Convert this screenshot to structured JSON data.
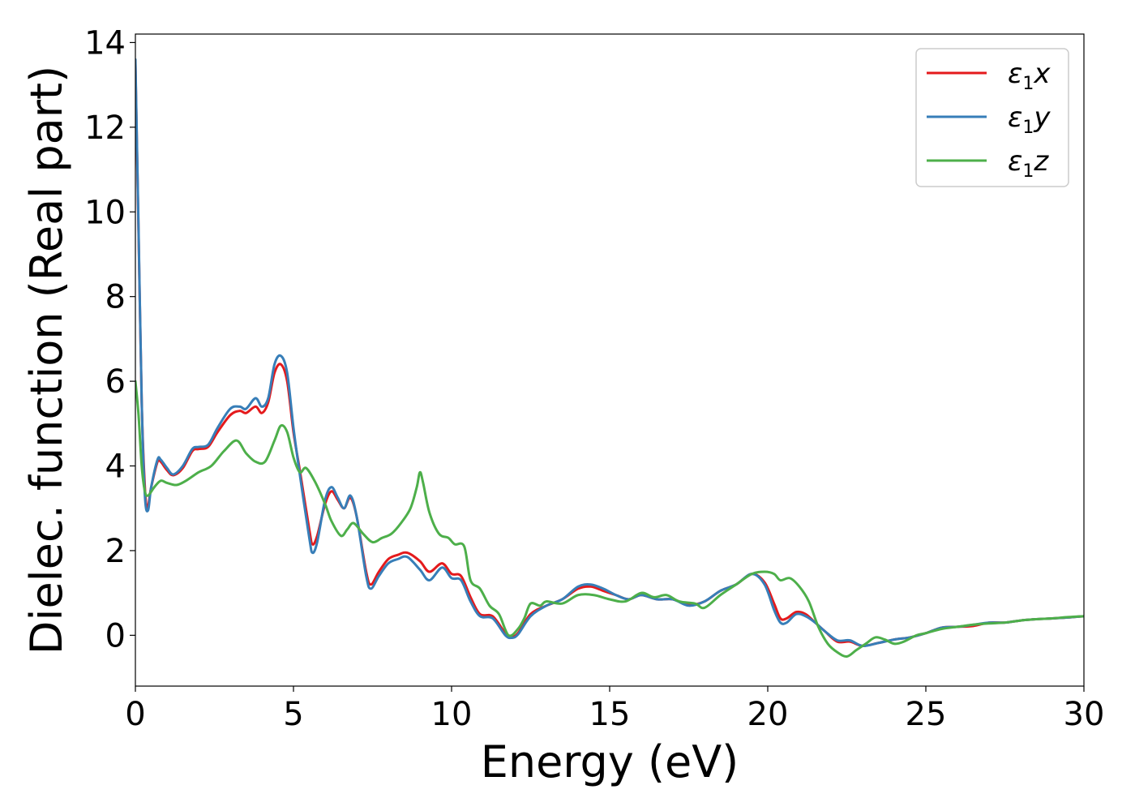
{
  "chart_data": {
    "type": "line",
    "xlabel": "Energy (eV)",
    "ylabel": "Dielec. function (Real part)",
    "xlim": [
      0,
      30
    ],
    "ylim": [
      -1.2,
      14.2
    ],
    "xticks": [
      0,
      5,
      10,
      15,
      20,
      25,
      30
    ],
    "yticks": [
      0,
      2,
      4,
      6,
      8,
      10,
      12,
      14
    ],
    "grid": false,
    "legend_position": "top-right",
    "series": [
      {
        "name": "x",
        "legend_parts": {
          "base": "ε",
          "sub": "1",
          "suffix": "x"
        },
        "color": "#e41a1c",
        "points": [
          [
            0,
            13.5
          ],
          [
            0.1,
            9.5
          ],
          [
            0.2,
            5.5
          ],
          [
            0.3,
            3.5
          ],
          [
            0.38,
            3.0
          ],
          [
            0.5,
            3.5
          ],
          [
            0.7,
            4.1
          ],
          [
            0.8,
            4.1
          ],
          [
            1.0,
            3.9
          ],
          [
            1.2,
            3.78
          ],
          [
            1.5,
            3.95
          ],
          [
            1.8,
            4.35
          ],
          [
            2.0,
            4.4
          ],
          [
            2.3,
            4.45
          ],
          [
            2.6,
            4.8
          ],
          [
            3.0,
            5.2
          ],
          [
            3.3,
            5.3
          ],
          [
            3.5,
            5.25
          ],
          [
            3.8,
            5.4
          ],
          [
            4.0,
            5.25
          ],
          [
            4.2,
            5.5
          ],
          [
            4.4,
            6.2
          ],
          [
            4.6,
            6.4
          ],
          [
            4.8,
            6.0
          ],
          [
            5.0,
            4.8
          ],
          [
            5.2,
            3.9
          ],
          [
            5.5,
            2.5
          ],
          [
            5.6,
            2.15
          ],
          [
            5.75,
            2.35
          ],
          [
            6.0,
            3.1
          ],
          [
            6.2,
            3.4
          ],
          [
            6.4,
            3.2
          ],
          [
            6.6,
            3.0
          ],
          [
            6.8,
            3.25
          ],
          [
            7.0,
            2.8
          ],
          [
            7.3,
            1.5
          ],
          [
            7.45,
            1.2
          ],
          [
            7.7,
            1.5
          ],
          [
            8.0,
            1.8
          ],
          [
            8.3,
            1.9
          ],
          [
            8.6,
            1.95
          ],
          [
            9.0,
            1.75
          ],
          [
            9.3,
            1.5
          ],
          [
            9.7,
            1.7
          ],
          [
            10.0,
            1.45
          ],
          [
            10.3,
            1.4
          ],
          [
            10.6,
            0.9
          ],
          [
            10.9,
            0.5
          ],
          [
            11.3,
            0.45
          ],
          [
            11.7,
            0.05
          ],
          [
            11.9,
            -0.03
          ],
          [
            12.1,
            0.05
          ],
          [
            12.5,
            0.5
          ],
          [
            13.0,
            0.7
          ],
          [
            13.5,
            0.85
          ],
          [
            14.0,
            1.1
          ],
          [
            14.4,
            1.15
          ],
          [
            14.8,
            1.05
          ],
          [
            15.2,
            0.95
          ],
          [
            15.6,
            0.85
          ],
          [
            16.0,
            0.95
          ],
          [
            16.5,
            0.85
          ],
          [
            17.0,
            0.85
          ],
          [
            17.5,
            0.72
          ],
          [
            18.0,
            0.8
          ],
          [
            18.5,
            1.05
          ],
          [
            19.0,
            1.2
          ],
          [
            19.5,
            1.45
          ],
          [
            19.9,
            1.25
          ],
          [
            20.2,
            0.75
          ],
          [
            20.4,
            0.4
          ],
          [
            20.6,
            0.4
          ],
          [
            20.9,
            0.55
          ],
          [
            21.2,
            0.5
          ],
          [
            21.5,
            0.3
          ],
          [
            21.8,
            0.1
          ],
          [
            22.2,
            -0.15
          ],
          [
            22.6,
            -0.15
          ],
          [
            23.0,
            -0.25
          ],
          [
            23.5,
            -0.18
          ],
          [
            24.0,
            -0.1
          ],
          [
            24.5,
            -0.05
          ],
          [
            25.0,
            0.05
          ],
          [
            25.5,
            0.18
          ],
          [
            26.0,
            0.2
          ],
          [
            26.5,
            0.22
          ],
          [
            27.0,
            0.3
          ],
          [
            27.5,
            0.3
          ],
          [
            28.0,
            0.35
          ],
          [
            28.5,
            0.38
          ],
          [
            29.0,
            0.4
          ],
          [
            29.5,
            0.42
          ],
          [
            30.0,
            0.45
          ]
        ]
      },
      {
        "name": "y",
        "legend_parts": {
          "base": "ε",
          "sub": "1",
          "suffix": "y"
        },
        "color": "#377eb8",
        "points": [
          [
            0,
            13.6
          ],
          [
            0.1,
            9.6
          ],
          [
            0.2,
            5.5
          ],
          [
            0.3,
            3.3
          ],
          [
            0.4,
            2.95
          ],
          [
            0.5,
            3.5
          ],
          [
            0.7,
            4.15
          ],
          [
            0.8,
            4.15
          ],
          [
            1.0,
            3.95
          ],
          [
            1.2,
            3.8
          ],
          [
            1.5,
            4.0
          ],
          [
            1.8,
            4.4
          ],
          [
            2.0,
            4.45
          ],
          [
            2.3,
            4.5
          ],
          [
            2.6,
            4.9
          ],
          [
            3.0,
            5.35
          ],
          [
            3.3,
            5.4
          ],
          [
            3.5,
            5.35
          ],
          [
            3.8,
            5.6
          ],
          [
            4.0,
            5.4
          ],
          [
            4.2,
            5.6
          ],
          [
            4.4,
            6.4
          ],
          [
            4.6,
            6.6
          ],
          [
            4.8,
            6.2
          ],
          [
            5.0,
            4.9
          ],
          [
            5.2,
            3.8
          ],
          [
            5.5,
            2.3
          ],
          [
            5.6,
            1.95
          ],
          [
            5.75,
            2.2
          ],
          [
            6.0,
            3.2
          ],
          [
            6.2,
            3.5
          ],
          [
            6.4,
            3.25
          ],
          [
            6.6,
            3.0
          ],
          [
            6.8,
            3.3
          ],
          [
            7.0,
            2.8
          ],
          [
            7.3,
            1.4
          ],
          [
            7.45,
            1.1
          ],
          [
            7.7,
            1.4
          ],
          [
            8.0,
            1.7
          ],
          [
            8.3,
            1.8
          ],
          [
            8.6,
            1.85
          ],
          [
            9.0,
            1.55
          ],
          [
            9.3,
            1.3
          ],
          [
            9.7,
            1.6
          ],
          [
            10.0,
            1.35
          ],
          [
            10.3,
            1.3
          ],
          [
            10.6,
            0.8
          ],
          [
            10.9,
            0.45
          ],
          [
            11.3,
            0.4
          ],
          [
            11.7,
            0.0
          ],
          [
            11.9,
            -0.06
          ],
          [
            12.1,
            0.02
          ],
          [
            12.5,
            0.45
          ],
          [
            13.0,
            0.7
          ],
          [
            13.5,
            0.85
          ],
          [
            14.0,
            1.15
          ],
          [
            14.4,
            1.2
          ],
          [
            14.8,
            1.1
          ],
          [
            15.2,
            0.95
          ],
          [
            15.6,
            0.85
          ],
          [
            16.0,
            0.95
          ],
          [
            16.5,
            0.85
          ],
          [
            17.0,
            0.85
          ],
          [
            17.5,
            0.7
          ],
          [
            18.0,
            0.8
          ],
          [
            18.5,
            1.05
          ],
          [
            19.0,
            1.2
          ],
          [
            19.5,
            1.45
          ],
          [
            19.9,
            1.2
          ],
          [
            20.2,
            0.6
          ],
          [
            20.4,
            0.3
          ],
          [
            20.6,
            0.3
          ],
          [
            20.9,
            0.5
          ],
          [
            21.2,
            0.45
          ],
          [
            21.5,
            0.3
          ],
          [
            21.8,
            0.1
          ],
          [
            22.2,
            -0.12
          ],
          [
            22.6,
            -0.12
          ],
          [
            23.0,
            -0.25
          ],
          [
            23.5,
            -0.18
          ],
          [
            24.0,
            -0.1
          ],
          [
            24.5,
            -0.05
          ],
          [
            25.0,
            0.05
          ],
          [
            25.5,
            0.18
          ],
          [
            26.0,
            0.2
          ],
          [
            26.5,
            0.25
          ],
          [
            27.0,
            0.3
          ],
          [
            27.5,
            0.3
          ],
          [
            28.0,
            0.35
          ],
          [
            28.5,
            0.38
          ],
          [
            29.0,
            0.4
          ],
          [
            29.5,
            0.42
          ],
          [
            30.0,
            0.45
          ]
        ]
      },
      {
        "name": "z",
        "legend_parts": {
          "base": "ε",
          "sub": "1",
          "suffix": "z"
        },
        "color": "#4daf4a",
        "points": [
          [
            0,
            6.0
          ],
          [
            0.1,
            5.2
          ],
          [
            0.2,
            4.0
          ],
          [
            0.3,
            3.4
          ],
          [
            0.4,
            3.3
          ],
          [
            0.6,
            3.5
          ],
          [
            0.8,
            3.65
          ],
          [
            1.0,
            3.6
          ],
          [
            1.3,
            3.55
          ],
          [
            1.6,
            3.65
          ],
          [
            2.0,
            3.85
          ],
          [
            2.4,
            4.0
          ],
          [
            2.8,
            4.35
          ],
          [
            3.2,
            4.6
          ],
          [
            3.5,
            4.3
          ],
          [
            3.8,
            4.1
          ],
          [
            4.1,
            4.1
          ],
          [
            4.4,
            4.6
          ],
          [
            4.6,
            4.95
          ],
          [
            4.8,
            4.8
          ],
          [
            5.0,
            4.2
          ],
          [
            5.2,
            3.85
          ],
          [
            5.4,
            3.95
          ],
          [
            5.7,
            3.6
          ],
          [
            6.0,
            3.1
          ],
          [
            6.2,
            2.7
          ],
          [
            6.5,
            2.35
          ],
          [
            6.7,
            2.5
          ],
          [
            6.9,
            2.65
          ],
          [
            7.2,
            2.4
          ],
          [
            7.5,
            2.2
          ],
          [
            7.8,
            2.3
          ],
          [
            8.1,
            2.4
          ],
          [
            8.4,
            2.65
          ],
          [
            8.7,
            3.0
          ],
          [
            8.9,
            3.5
          ],
          [
            9.0,
            3.85
          ],
          [
            9.1,
            3.6
          ],
          [
            9.3,
            2.9
          ],
          [
            9.6,
            2.4
          ],
          [
            9.9,
            2.3
          ],
          [
            10.1,
            2.15
          ],
          [
            10.4,
            2.1
          ],
          [
            10.6,
            1.3
          ],
          [
            10.9,
            1.1
          ],
          [
            11.2,
            0.7
          ],
          [
            11.5,
            0.5
          ],
          [
            11.8,
            0.0
          ],
          [
            12.1,
            0.15
          ],
          [
            12.3,
            0.4
          ],
          [
            12.5,
            0.75
          ],
          [
            12.8,
            0.7
          ],
          [
            13.0,
            0.8
          ],
          [
            13.5,
            0.75
          ],
          [
            14.0,
            0.95
          ],
          [
            14.5,
            0.95
          ],
          [
            15.0,
            0.85
          ],
          [
            15.5,
            0.8
          ],
          [
            16.0,
            1.0
          ],
          [
            16.4,
            0.9
          ],
          [
            16.8,
            0.95
          ],
          [
            17.2,
            0.8
          ],
          [
            17.7,
            0.75
          ],
          [
            18.0,
            0.65
          ],
          [
            18.5,
            0.95
          ],
          [
            19.0,
            1.2
          ],
          [
            19.5,
            1.45
          ],
          [
            19.9,
            1.5
          ],
          [
            20.2,
            1.45
          ],
          [
            20.4,
            1.3
          ],
          [
            20.7,
            1.35
          ],
          [
            21.0,
            1.15
          ],
          [
            21.3,
            0.8
          ],
          [
            21.6,
            0.2
          ],
          [
            21.9,
            -0.2
          ],
          [
            22.2,
            -0.4
          ],
          [
            22.5,
            -0.5
          ],
          [
            22.8,
            -0.35
          ],
          [
            23.1,
            -0.2
          ],
          [
            23.4,
            -0.05
          ],
          [
            23.7,
            -0.1
          ],
          [
            24.0,
            -0.2
          ],
          [
            24.3,
            -0.15
          ],
          [
            24.7,
            0.0
          ],
          [
            25.0,
            0.05
          ],
          [
            25.5,
            0.15
          ],
          [
            26.0,
            0.2
          ],
          [
            26.5,
            0.25
          ],
          [
            27.0,
            0.28
          ],
          [
            27.5,
            0.3
          ],
          [
            28.0,
            0.35
          ],
          [
            28.5,
            0.38
          ],
          [
            29.0,
            0.4
          ],
          [
            29.5,
            0.43
          ],
          [
            30.0,
            0.45
          ]
        ]
      }
    ]
  }
}
